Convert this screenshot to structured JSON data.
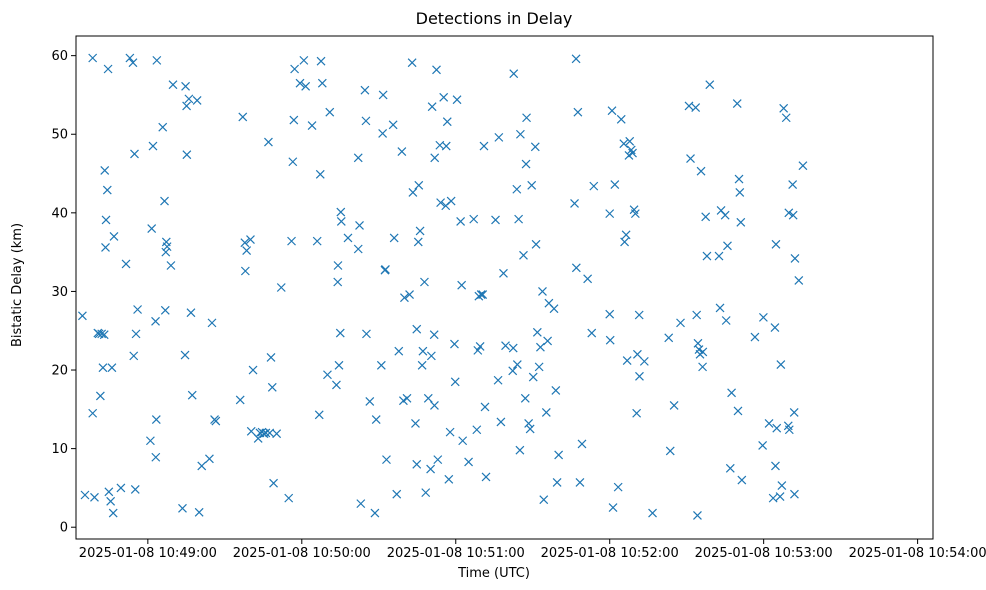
{
  "chart_data": {
    "type": "scatter",
    "title": "Detections in Delay",
    "xlabel": "Time (UTC)",
    "ylabel": "Bistatic Delay (km)",
    "marker": "x",
    "color": "#1f77b4",
    "x_unit": "seconds after 2025-01-08 10:49:00",
    "xlim": [
      -28,
      306
    ],
    "ylim": [
      -1.5,
      62.5
    ],
    "x_ticks": [
      {
        "value": 0,
        "label": "2025-01-08 10:49:00"
      },
      {
        "value": 60,
        "label": "2025-01-08 10:50:00"
      },
      {
        "value": 120,
        "label": "2025-01-08 10:51:00"
      },
      {
        "value": 180,
        "label": "2025-01-08 10:52:00"
      },
      {
        "value": 240,
        "label": "2025-01-08 10:53:00"
      },
      {
        "value": 300,
        "label": "2025-01-08 10:54:00"
      }
    ],
    "y_ticks": [
      {
        "value": 0,
        "label": "0"
      },
      {
        "value": 10,
        "label": "10"
      },
      {
        "value": 20,
        "label": "20"
      },
      {
        "value": 30,
        "label": "30"
      },
      {
        "value": 40,
        "label": "40"
      },
      {
        "value": 50,
        "label": "50"
      },
      {
        "value": 60,
        "label": "60"
      }
    ],
    "points": [
      [
        -25.5,
        26.9
      ],
      [
        -24.5,
        4.1
      ],
      [
        -21.5,
        59.7
      ],
      [
        -21.5,
        14.5
      ],
      [
        -20.8,
        3.8
      ],
      [
        -19.5,
        24.7
      ],
      [
        -19,
        24.6
      ],
      [
        -18.5,
        16.7
      ],
      [
        -18,
        24.6
      ],
      [
        -17.5,
        20.3
      ],
      [
        -17,
        24.5
      ],
      [
        -16.8,
        45.4
      ],
      [
        -16.5,
        35.6
      ],
      [
        -16.3,
        39.1
      ],
      [
        -15.8,
        42.9
      ],
      [
        -15.5,
        58.3
      ],
      [
        -15.2,
        4.5
      ],
      [
        -14.5,
        3.3
      ],
      [
        -14,
        20.3
      ],
      [
        -13.5,
        1.8
      ],
      [
        -13.2,
        37.0
      ],
      [
        -10.5,
        5.0
      ],
      [
        -8.5,
        33.5
      ],
      [
        -7,
        59.7
      ],
      [
        -5.8,
        59.1
      ],
      [
        -5.5,
        21.8
      ],
      [
        -5.2,
        47.5
      ],
      [
        -4.9,
        4.8
      ],
      [
        -4.6,
        24.6
      ],
      [
        -4,
        27.7
      ],
      [
        1,
        11.0
      ],
      [
        1.5,
        38.0
      ],
      [
        2,
        48.5
      ],
      [
        3,
        26.2
      ],
      [
        3.3,
        13.7
      ],
      [
        3.1,
        8.9
      ],
      [
        3.5,
        59.4
      ],
      [
        5.8,
        50.9
      ],
      [
        6.5,
        41.5
      ],
      [
        6.8,
        27.6
      ],
      [
        7,
        35.0
      ],
      [
        7.2,
        36.3
      ],
      [
        7.5,
        35.7
      ],
      [
        9,
        33.3
      ],
      [
        9.8,
        56.3
      ],
      [
        13.5,
        2.4
      ],
      [
        14.7,
        56.1
      ],
      [
        14.5,
        21.9
      ],
      [
        15.1,
        53.6
      ],
      [
        15.2,
        47.4
      ],
      [
        16,
        54.5
      ],
      [
        16.8,
        27.3
      ],
      [
        17.3,
        16.8
      ],
      [
        19.2,
        54.3
      ],
      [
        20,
        1.9
      ],
      [
        21,
        7.8
      ],
      [
        24,
        8.7
      ],
      [
        25,
        26.0
      ],
      [
        26,
        13.7
      ],
      [
        26.5,
        13.5
      ],
      [
        36,
        16.2
      ],
      [
        37,
        52.2
      ],
      [
        37.8,
        36.2
      ],
      [
        38,
        32.6
      ],
      [
        38.5,
        35.2
      ],
      [
        40,
        36.6
      ],
      [
        40.3,
        12.2
      ],
      [
        41,
        20.0
      ],
      [
        43,
        11.3
      ],
      [
        43.7,
        12.0
      ],
      [
        44.5,
        12.1
      ],
      [
        45.3,
        11.9
      ],
      [
        46,
        12.0
      ],
      [
        47,
        49.0
      ],
      [
        47.5,
        12.0
      ],
      [
        48,
        21.6
      ],
      [
        48.5,
        17.8
      ],
      [
        49,
        5.6
      ],
      [
        50.2,
        11.9
      ],
      [
        52,
        30.5
      ],
      [
        54.9,
        3.7
      ],
      [
        56,
        36.4
      ],
      [
        56.5,
        46.5
      ],
      [
        56.9,
        51.8
      ],
      [
        57.2,
        58.3
      ],
      [
        59.3,
        56.5
      ],
      [
        60.8,
        59.4
      ],
      [
        61.5,
        56.1
      ],
      [
        64,
        51.1
      ],
      [
        66,
        36.4
      ],
      [
        66.8,
        14.3
      ],
      [
        67.2,
        44.9
      ],
      [
        67.5,
        59.3
      ],
      [
        68,
        56.5
      ],
      [
        70,
        19.4
      ],
      [
        70.9,
        52.8
      ],
      [
        73.5,
        18.1
      ],
      [
        74,
        31.2
      ],
      [
        74.1,
        33.3
      ],
      [
        74.5,
        20.6
      ],
      [
        75,
        24.7
      ],
      [
        75.2,
        40.1
      ],
      [
        75.4,
        38.9
      ],
      [
        78,
        36.8
      ],
      [
        82,
        47.0
      ],
      [
        82,
        35.4
      ],
      [
        82.5,
        38.4
      ],
      [
        83,
        3.0
      ],
      [
        84.6,
        55.6
      ],
      [
        85,
        51.7
      ],
      [
        85.2,
        24.6
      ],
      [
        86.5,
        16.0
      ],
      [
        88.5,
        1.8
      ],
      [
        89,
        13.7
      ],
      [
        91,
        20.6
      ],
      [
        91.5,
        50.1
      ],
      [
        91.7,
        55.0
      ],
      [
        92.4,
        32.7
      ],
      [
        92.6,
        32.8
      ],
      [
        93,
        8.6
      ],
      [
        95.6,
        51.2
      ],
      [
        96,
        36.8
      ],
      [
        97,
        4.2
      ],
      [
        97.8,
        22.4
      ],
      [
        99,
        47.8
      ],
      [
        99.6,
        16.1
      ],
      [
        100,
        29.2
      ],
      [
        101,
        16.4
      ],
      [
        102,
        29.6
      ],
      [
        103,
        59.1
      ],
      [
        103.3,
        42.6
      ],
      [
        104.3,
        13.2
      ],
      [
        104.8,
        25.2
      ],
      [
        104.8,
        8.0
      ],
      [
        105.4,
        36.3
      ],
      [
        105.6,
        43.5
      ],
      [
        106.1,
        37.7
      ],
      [
        106.9,
        20.6
      ],
      [
        107.2,
        22.4
      ],
      [
        107.8,
        31.2
      ],
      [
        108.3,
        4.4
      ],
      [
        109.3,
        16.4
      ],
      [
        110.2,
        7.4
      ],
      [
        110.5,
        21.8
      ],
      [
        110.8,
        53.5
      ],
      [
        111.6,
        24.5
      ],
      [
        111.8,
        47.0
      ],
      [
        111.7,
        15.5
      ],
      [
        112.5,
        58.2
      ],
      [
        113,
        8.6
      ],
      [
        113.8,
        48.6
      ],
      [
        114.1,
        41.3
      ],
      [
        115.3,
        54.7
      ],
      [
        116.3,
        48.5
      ],
      [
        116.1,
        40.9
      ],
      [
        116.7,
        51.6
      ],
      [
        117.3,
        6.1
      ],
      [
        117.8,
        12.1
      ],
      [
        118.2,
        41.5
      ],
      [
        119.5,
        23.3
      ],
      [
        119.8,
        18.5
      ],
      [
        120.5,
        54.4
      ],
      [
        121.9,
        38.9
      ],
      [
        122.3,
        30.8
      ],
      [
        122.7,
        11.0
      ],
      [
        125,
        8.3
      ],
      [
        127,
        39.2
      ],
      [
        128.2,
        12.4
      ],
      [
        128.6,
        22.5
      ],
      [
        129,
        29.4
      ],
      [
        129.5,
        23.0
      ],
      [
        129.9,
        29.6
      ],
      [
        130.5,
        29.6
      ],
      [
        131,
        48.5
      ],
      [
        131.4,
        15.3
      ],
      [
        131.8,
        6.4
      ],
      [
        135.5,
        39.1
      ],
      [
        136.5,
        18.7
      ],
      [
        136.8,
        49.6
      ],
      [
        137.6,
        13.4
      ],
      [
        138.6,
        32.3
      ],
      [
        139.4,
        23.1
      ],
      [
        142.2,
        19.9
      ],
      [
        142.4,
        22.8
      ],
      [
        142.6,
        57.7
      ],
      [
        143.8,
        43.0
      ],
      [
        144,
        20.7
      ],
      [
        144.5,
        39.2
      ],
      [
        145.2,
        50.0
      ],
      [
        145,
        9.8
      ],
      [
        146.4,
        34.6
      ],
      [
        147.1,
        16.4
      ],
      [
        147.4,
        46.2
      ],
      [
        147.6,
        52.1
      ],
      [
        148.4,
        13.2
      ],
      [
        149,
        12.5
      ],
      [
        149.6,
        43.5
      ],
      [
        150.2,
        19.1
      ],
      [
        151,
        48.4
      ],
      [
        151.3,
        36.0
      ],
      [
        151.8,
        24.8
      ],
      [
        152.5,
        20.4
      ],
      [
        153,
        22.9
      ],
      [
        153.8,
        30.0
      ],
      [
        154.3,
        3.5
      ],
      [
        155.3,
        14.6
      ],
      [
        155.8,
        23.7
      ],
      [
        156.3,
        28.5
      ],
      [
        158.3,
        27.8
      ],
      [
        159,
        17.4
      ],
      [
        159.5,
        5.7
      ],
      [
        160.1,
        9.2
      ],
      [
        166.3,
        41.2
      ],
      [
        166.9,
        59.6
      ],
      [
        167,
        33.0
      ],
      [
        167.6,
        52.8
      ],
      [
        168.4,
        5.7
      ],
      [
        169.2,
        10.6
      ],
      [
        171.4,
        31.6
      ],
      [
        173,
        24.7
      ],
      [
        173.8,
        43.4
      ],
      [
        180,
        27.1
      ],
      [
        180,
        39.9
      ],
      [
        180.2,
        23.8
      ],
      [
        180.9,
        53.0
      ],
      [
        181.3,
        2.5
      ],
      [
        182,
        43.6
      ],
      [
        183.3,
        5.1
      ],
      [
        184.5,
        51.9
      ],
      [
        185.5,
        48.8
      ],
      [
        185.8,
        36.3
      ],
      [
        186.4,
        37.2
      ],
      [
        186.8,
        21.2
      ],
      [
        187.8,
        49.1
      ],
      [
        187.5,
        47.3
      ],
      [
        188.4,
        48.0
      ],
      [
        188.9,
        47.6
      ],
      [
        189.5,
        40.4
      ],
      [
        190,
        39.9
      ],
      [
        190.5,
        14.5
      ],
      [
        190.8,
        22.0
      ],
      [
        191.5,
        27.0
      ],
      [
        191.6,
        19.2
      ],
      [
        193.5,
        21.1
      ],
      [
        196.7,
        1.8
      ],
      [
        203,
        24.1
      ],
      [
        203.6,
        9.7
      ],
      [
        205.1,
        15.5
      ],
      [
        207.6,
        26.0
      ],
      [
        210.9,
        53.6
      ],
      [
        211.5,
        46.9
      ],
      [
        213.5,
        53.4
      ],
      [
        213.9,
        27.0
      ],
      [
        214.2,
        1.5
      ],
      [
        214.4,
        23.4
      ],
      [
        214.8,
        22.6
      ],
      [
        215.2,
        22.0
      ],
      [
        215.6,
        45.3
      ],
      [
        216.2,
        20.4
      ],
      [
        216.3,
        22.3
      ],
      [
        217.4,
        39.5
      ],
      [
        217.9,
        34.5
      ],
      [
        219,
        56.3
      ],
      [
        222.6,
        34.5
      ],
      [
        223,
        27.9
      ],
      [
        223.4,
        40.3
      ],
      [
        225,
        39.7
      ],
      [
        225.4,
        26.3
      ],
      [
        225.9,
        35.8
      ],
      [
        227,
        7.5
      ],
      [
        227.5,
        17.1
      ],
      [
        229.7,
        53.9
      ],
      [
        230,
        14.8
      ],
      [
        230.4,
        44.3
      ],
      [
        230.7,
        42.6
      ],
      [
        231.1,
        38.8
      ],
      [
        231.5,
        6.0
      ],
      [
        236.6,
        24.2
      ],
      [
        239.6,
        10.4
      ],
      [
        239.9,
        26.7
      ],
      [
        242.1,
        13.2
      ],
      [
        243.7,
        3.7
      ],
      [
        244.4,
        25.4
      ],
      [
        244.6,
        7.8
      ],
      [
        244.8,
        36.0
      ],
      [
        245.1,
        12.6
      ],
      [
        246.4,
        3.9
      ],
      [
        246.7,
        20.7
      ],
      [
        247.1,
        5.3
      ],
      [
        247.8,
        53.3
      ],
      [
        248.8,
        52.1
      ],
      [
        249.6,
        12.9
      ],
      [
        249.8,
        40.0
      ],
      [
        250,
        12.4
      ],
      [
        251.3,
        43.6
      ],
      [
        251.5,
        39.7
      ],
      [
        251.9,
        14.6
      ],
      [
        252,
        4.2
      ],
      [
        252.2,
        34.2
      ],
      [
        253.7,
        31.4
      ],
      [
        255.3,
        46.0
      ]
    ]
  }
}
